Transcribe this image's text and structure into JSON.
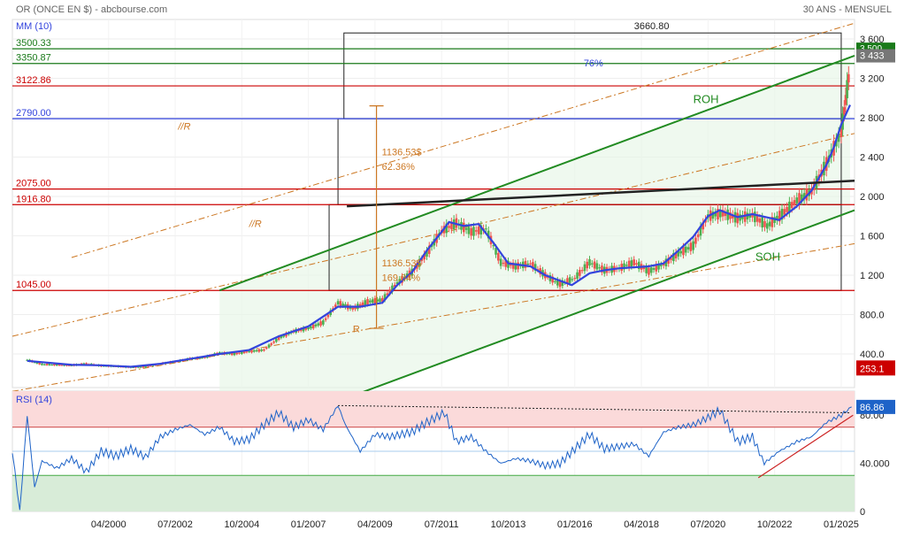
{
  "header": {
    "title": "OR (ONCE EN $) - abcbourse.com",
    "period": "30 ANS - MENSUEL",
    "indicator": "MM (10)"
  },
  "colors": {
    "bullish": "#4caf50",
    "bearish": "#ef5350",
    "ma": "#3344dd",
    "channel": "#228b22",
    "level_red": "#cc0000",
    "level_green": "#1a7a1a",
    "fib": "#cc7722",
    "rsi_line": "#1e63c8",
    "rsi_upper_zone": "#fbdada",
    "rsi_lower_zone": "#d8ecd8",
    "last_badge": "#777777",
    "low_badge": "#cc0000",
    "rsi_badge": "#1e63c8"
  },
  "chart_data": [
    {
      "type": "line",
      "title": "OR (ONCE EN $)",
      "subtitle": "30 ANS - MENSUEL",
      "candlestick": true,
      "x_ticks": [
        "04/2000",
        "07/2002",
        "10/2004",
        "01/2007",
        "04/2009",
        "07/2011",
        "10/2013",
        "01/2016",
        "04/2018",
        "07/2020",
        "10/2022",
        "01/2025"
      ],
      "y_ticks": [
        "400.0",
        "800.0",
        "1 200",
        "1 600",
        "2 000",
        "2 400",
        "2 800",
        "3 200",
        "3 600"
      ],
      "ylim": [
        0,
        3700
      ],
      "xlim": [
        1997.0,
        2025.45
      ],
      "grid": true,
      "series": [
        {
          "name": "MM (10)",
          "x": [
            1997.5,
            1999,
            2000,
            2001,
            2002,
            2003,
            2004,
            2005,
            2006,
            2007,
            2008,
            2008.75,
            2009.5,
            2010,
            2010.5,
            2011,
            2011.5,
            2011.75,
            2012.25,
            2012.75,
            2013.25,
            2013.75,
            2014.5,
            2015,
            2015.9,
            2016.5,
            2017,
            2017.5,
            2018.5,
            2019,
            2019.5,
            2020,
            2020.5,
            2020.9,
            2021.5,
            2022,
            2022.6,
            2022.9,
            2023.5,
            2024,
            2024.5,
            2024.75,
            2025,
            2025.3
          ],
          "values": [
            330,
            290,
            285,
            270,
            300,
            350,
            400,
            440,
            580,
            680,
            880,
            880,
            920,
            1100,
            1230,
            1450,
            1640,
            1740,
            1700,
            1720,
            1530,
            1320,
            1290,
            1200,
            1100,
            1220,
            1250,
            1270,
            1290,
            1320,
            1450,
            1590,
            1800,
            1860,
            1790,
            1820,
            1780,
            1760,
            1900,
            2060,
            2320,
            2500,
            2730,
            2930
          ]
        }
      ],
      "ohlc": {
        "x": [
          1997.5,
          1998,
          1998.5,
          1999,
          1999.5,
          2000,
          2000.5,
          2001,
          2001.5,
          2002,
          2002.5,
          2003,
          2003.5,
          2004,
          2004.5,
          2005,
          2005.5,
          2006,
          2006.5,
          2007,
          2007.5,
          2008,
          2008.5,
          2009,
          2009.5,
          2010,
          2010.5,
          2011,
          2011.5,
          2012,
          2012.5,
          2013,
          2013.5,
          2014,
          2014.5,
          2015,
          2015.5,
          2016,
          2016.5,
          2017,
          2017.5,
          2018,
          2018.5,
          2019,
          2019.5,
          2020,
          2020.5,
          2021,
          2021.5,
          2022,
          2022.5,
          2023,
          2023.5,
          2024,
          2024.5,
          2025,
          2025.3
        ],
        "close": [
          340,
          295,
          290,
          285,
          300,
          280,
          275,
          265,
          270,
          300,
          320,
          350,
          365,
          410,
          400,
          425,
          440,
          560,
          630,
          660,
          720,
          920,
          860,
          930,
          950,
          1120,
          1230,
          1420,
          1650,
          1730,
          1640,
          1670,
          1330,
          1290,
          1320,
          1200,
          1110,
          1170,
          1330,
          1250,
          1270,
          1330,
          1240,
          1310,
          1420,
          1500,
          1800,
          1830,
          1780,
          1810,
          1700,
          1820,
          1960,
          2050,
          2330,
          2650,
          3310
        ]
      }
    },
    {
      "type": "line",
      "title": "RSI (14)",
      "x_ticks": [
        "04/2000",
        "07/2002",
        "10/2004",
        "01/2007",
        "04/2009",
        "07/2011",
        "10/2013",
        "01/2016",
        "04/2018",
        "07/2020",
        "10/2022",
        "01/2025"
      ],
      "y_ticks": [
        "0",
        "40.000",
        "80.00"
      ],
      "ylim": [
        0,
        100
      ],
      "series": [
        {
          "name": "RSI (14)",
          "x": [
            1997.0,
            1997.25,
            1997.5,
            1997.75,
            1998,
            1998.5,
            1999,
            1999.5,
            2000,
            2000.5,
            2001,
            2001.5,
            2002,
            2002.5,
            2003,
            2003.5,
            2004,
            2004.5,
            2005,
            2005.5,
            2006,
            2006.5,
            2007,
            2007.5,
            2008,
            2008.25,
            2008.75,
            2009.25,
            2009.75,
            2010.5,
            2011,
            2011.6,
            2012,
            2012.5,
            2013,
            2013.5,
            2014,
            2014.5,
            2015,
            2015.5,
            2016,
            2016.5,
            2017,
            2017.5,
            2018,
            2018.5,
            2019,
            2019.5,
            2020,
            2020.5,
            2020.9,
            2021.5,
            2022,
            2022.4,
            2022.9,
            2023.5,
            2024,
            2024.5,
            2025,
            2025.35
          ],
          "values": [
            50,
            0,
            80,
            20,
            42,
            36,
            44,
            33,
            50,
            46,
            52,
            45,
            62,
            68,
            72,
            64,
            70,
            58,
            60,
            72,
            82,
            70,
            76,
            68,
            88,
            72,
            50,
            64,
            62,
            66,
            74,
            82,
            58,
            62,
            50,
            40,
            44,
            42,
            38,
            40,
            52,
            64,
            52,
            54,
            56,
            46,
            66,
            70,
            72,
            78,
            84,
            58,
            62,
            40,
            50,
            58,
            62,
            74,
            80,
            86.86
          ]
        }
      ]
    }
  ],
  "levels": [
    {
      "label": "3500.33",
      "value": 3500.33,
      "color": "#1a7a1a"
    },
    {
      "label": "3350.87",
      "value": 3350.87,
      "color": "#1a7a1a"
    },
    {
      "label": "3122.86",
      "value": 3122.86,
      "color": "#cc0000"
    },
    {
      "label": "2790.00",
      "value": 2790.0,
      "color": "#3344dd"
    },
    {
      "label": "2075.00",
      "value": 2075.0,
      "color": "#cc0000"
    },
    {
      "label": "1916.80",
      "value": 1916.8,
      "color": "#cc0000"
    },
    {
      "label": "1045.00",
      "value": 1045.0,
      "color": "#cc0000"
    }
  ],
  "annotations": {
    "top_value": "3660.80",
    "pct_76": "76%",
    "roh": "ROH",
    "soh": "SOH",
    "r_label_1": "//R",
    "r_label_2": "//R",
    "r_label_3": "R",
    "move_upper_amount": "1136.53$",
    "move_upper_pct": "62.36%",
    "move_lower_amount": "1136.53$",
    "move_lower_pct": "169.04%"
  },
  "badges": {
    "last_price": "3 433",
    "hidden_price": "3 500",
    "low_value": "253.1",
    "rsi_last": "86.86"
  },
  "rsi": {
    "title": "RSI (14)",
    "upper": 70,
    "lower": 30
  }
}
